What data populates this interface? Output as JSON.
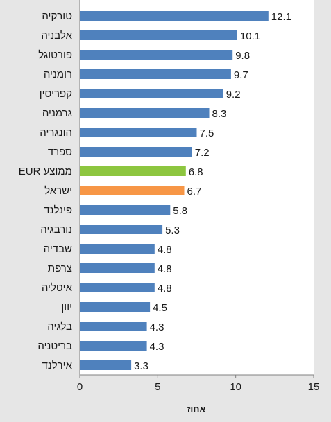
{
  "colors": {
    "background": "#e6e6e6",
    "plot_background": "#ffffff",
    "bar_default": "#4f81bd",
    "bar_default_edge": "#3a6aa3",
    "bar_eur_average": "#8dc63f",
    "bar_israel": "#f79646",
    "axis": "#808080"
  },
  "chart_data": {
    "type": "bar",
    "orientation": "horizontal",
    "categories": [
      "טורקיה",
      "אלבניה",
      "פורטוגל",
      "רומניה",
      "קפריסין",
      "גרמניה",
      "הונגריה",
      "ספרד",
      "EUR ממוצע",
      "ישראל",
      "פינלנד",
      "נורבגיה",
      "שבדיה",
      "צרפת",
      "איטליה",
      "יוון",
      "בלגיה",
      "בריטניה",
      "אירלנד"
    ],
    "values": [
      12.1,
      10.1,
      9.8,
      9.7,
      9.2,
      8.3,
      7.5,
      7.2,
      6.8,
      6.7,
      5.8,
      5.3,
      4.8,
      4.8,
      4.8,
      4.5,
      4.3,
      4.3,
      3.3
    ],
    "value_labels": [
      "12.1",
      "10.1",
      "9.8",
      "9.7",
      "9.2",
      "8.3",
      "7.5",
      "7.2",
      "6.8",
      "6.7",
      "5.8",
      "5.3",
      "4.8",
      "4.8",
      "4.8",
      "4.5",
      "4.3",
      "4.3",
      "3.3"
    ],
    "highlight": {
      "EUR ממוצע": "bar_eur_average",
      "ישראל": "bar_israel"
    },
    "xlabel": "אחוז",
    "xlim": [
      0,
      15
    ],
    "xticks": [
      0,
      5,
      10,
      15
    ],
    "xtick_labels": [
      "0",
      "5",
      "10",
      "15"
    ],
    "grid": false,
    "legend": "none"
  }
}
